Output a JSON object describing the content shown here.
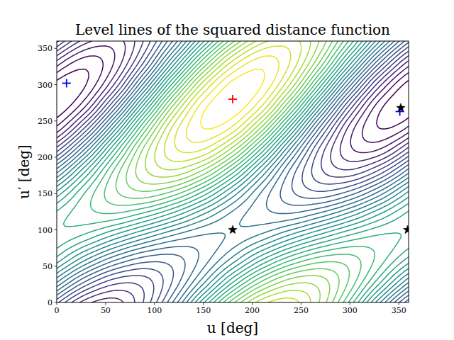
{
  "chart_data": {
    "type": "contour",
    "title": "Level lines of the squared distance function",
    "x_label": "u [deg]",
    "y_label": "u′ [deg]",
    "xlim": [
      0,
      360
    ],
    "ylim": [
      0,
      360
    ],
    "xticks": [
      0,
      50,
      100,
      150,
      200,
      250,
      300,
      350
    ],
    "yticks": [
      0,
      50,
      100,
      150,
      200,
      250,
      300,
      350
    ],
    "grid": false,
    "x": [
      0,
      30,
      60,
      90,
      120,
      150,
      180,
      210,
      240,
      270,
      300,
      330,
      360
    ],
    "y": [
      0,
      30,
      60,
      90,
      120,
      150,
      180,
      210,
      240,
      270,
      300,
      330,
      360
    ],
    "z": [
      [
        1.23,
        0.84,
        0.76,
        1.02,
        1.53,
        2.18,
        2.77,
        3.16,
        3.24,
        2.98,
        2.47,
        1.82,
        1.23
      ],
      [
        1.74,
        1.31,
        1.06,
        1.06,
        1.32,
        1.75,
        2.26,
        2.69,
        2.94,
        2.94,
        2.68,
        2.25,
        1.74
      ],
      [
        2.17,
        1.82,
        1.53,
        1.36,
        1.36,
        1.54,
        1.83,
        2.18,
        2.47,
        2.64,
        2.64,
        2.46,
        2.17
      ],
      [
        2.38,
        2.25,
        2.04,
        1.83,
        1.66,
        1.58,
        1.62,
        1.75,
        1.96,
        2.17,
        2.34,
        2.42,
        2.38
      ],
      [
        2.34,
        2.46,
        2.47,
        2.34,
        2.13,
        1.88,
        1.66,
        1.54,
        1.53,
        1.66,
        1.87,
        2.12,
        2.34
      ],
      [
        2.04,
        2.42,
        2.68,
        2.77,
        2.64,
        2.35,
        1.96,
        1.58,
        1.32,
        1.23,
        1.36,
        1.65,
        2.04
      ],
      [
        1.57,
        2.12,
        2.64,
        2.98,
        3.07,
        2.86,
        2.43,
        1.88,
        1.36,
        1.02,
        0.93,
        1.14,
        1.57
      ],
      [
        1.06,
        1.65,
        2.34,
        2.94,
        3.28,
        3.29,
        2.94,
        2.35,
        1.66,
        1.06,
        0.72,
        0.71,
        1.06
      ],
      [
        0.63,
        1.14,
        1.87,
        2.64,
        3.24,
        3.5,
        3.37,
        2.86,
        2.13,
        1.36,
        0.76,
        0.5,
        0.63
      ],
      [
        0.42,
        0.71,
        1.36,
        2.17,
        2.94,
        3.46,
        3.58,
        3.29,
        2.64,
        1.83,
        1.06,
        0.54,
        0.42
      ],
      [
        0.46,
        0.5,
        0.93,
        1.66,
        2.47,
        3.16,
        3.54,
        3.5,
        3.07,
        2.34,
        1.53,
        0.84,
        0.46
      ],
      [
        0.76,
        0.54,
        0.72,
        1.23,
        1.96,
        2.69,
        3.24,
        3.46,
        3.28,
        2.77,
        2.04,
        1.31,
        0.76
      ],
      [
        1.23,
        0.84,
        0.76,
        1.02,
        1.53,
        2.18,
        2.77,
        3.16,
        3.24,
        2.98,
        2.47,
        1.82,
        1.23
      ]
    ],
    "levels": [
      0.5,
      0.6,
      0.7,
      0.8,
      0.9,
      1.0,
      1.1,
      1.2,
      1.3,
      1.4,
      1.5,
      1.6,
      1.7,
      1.8,
      1.9,
      2.0,
      2.1,
      2.2,
      2.3,
      2.4,
      2.5,
      2.6,
      2.7,
      2.8,
      2.9,
      3.0,
      3.1,
      3.2,
      3.3,
      3.4,
      3.5
    ],
    "markers": [
      {
        "x": 180,
        "y": 280,
        "color": "#ff0000",
        "marker": "plus"
      },
      {
        "x": 10,
        "y": 302,
        "color": "#0000ff",
        "marker": "plus"
      },
      {
        "x": 351,
        "y": 263,
        "color": "#0000ff",
        "marker": "plus"
      },
      {
        "x": 180,
        "y": 100,
        "color": "#000000",
        "marker": "star"
      },
      {
        "x": 352,
        "y": 268,
        "color": "#000000",
        "marker": "star"
      },
      {
        "x": 359,
        "y": 100,
        "color": "#000000",
        "marker": "star"
      }
    ]
  }
}
